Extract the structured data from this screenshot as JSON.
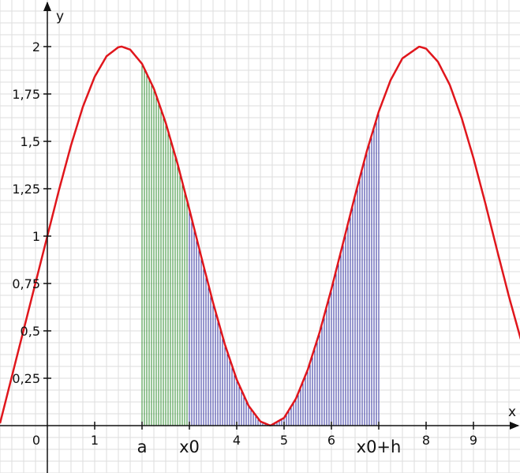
{
  "chart_data": {
    "type": "area",
    "function_values": {
      "x": [
        0,
        0.25,
        0.5,
        0.75,
        1,
        1.25,
        1.5,
        1.571,
        1.75,
        2,
        2.25,
        2.5,
        2.75,
        3,
        3.25,
        3.5,
        3.75,
        4,
        4.25,
        4.5,
        4.712,
        5,
        5.25,
        5.5,
        5.75,
        6,
        6.25,
        6.5,
        6.75,
        7,
        7.25,
        7.5,
        7.854,
        8,
        8.25,
        8.5,
        8.75,
        9,
        9.25,
        9.5,
        9.75,
        10
      ],
      "y": [
        1,
        1.247,
        1.479,
        1.682,
        1.841,
        1.949,
        1.997,
        2,
        1.984,
        1.909,
        1.778,
        1.598,
        1.382,
        1.141,
        0.892,
        0.649,
        0.428,
        0.243,
        0.105,
        0.022,
        0,
        0.041,
        0.142,
        0.295,
        0.492,
        0.721,
        0.967,
        1.215,
        1.45,
        1.657,
        1.823,
        1.938,
        2,
        1.989,
        1.92,
        1.798,
        1.624,
        1.412,
        1.174,
        0.925,
        0.681,
        0.456
      ]
    },
    "shaded_regions": [
      {
        "color": "#2e8b2e",
        "from_x": 2,
        "to_x": 3
      },
      {
        "color": "#2e2e9e",
        "from_x": 3,
        "to_x": 7
      }
    ],
    "curve_color": "#e0161c",
    "xlabel": "x",
    "ylabel": "y",
    "xlim": [
      -1,
      10
    ],
    "ylim": [
      -0.25,
      2.25
    ],
    "x_ticks": [
      {
        "value": 0,
        "label": "0"
      },
      {
        "value": 1,
        "label": "1"
      },
      {
        "value": 4,
        "label": "4"
      },
      {
        "value": 5,
        "label": "5"
      },
      {
        "value": 6,
        "label": "6"
      },
      {
        "value": 8,
        "label": "8"
      },
      {
        "value": 9,
        "label": "9"
      }
    ],
    "x_markers": [
      {
        "value": 2,
        "label": "a"
      },
      {
        "value": 3,
        "label": "x0"
      },
      {
        "value": 7,
        "label": "x0+h"
      }
    ],
    "y_ticks": [
      {
        "value": 0.25,
        "label": "0,25"
      },
      {
        "value": 0.5,
        "label": "0,5"
      },
      {
        "value": 0.75,
        "label": "0,75"
      },
      {
        "value": 1,
        "label": "1"
      },
      {
        "value": 1.25,
        "label": "1,25"
      },
      {
        "value": 1.5,
        "label": "1,5"
      },
      {
        "value": 1.75,
        "label": "1,75"
      },
      {
        "value": 2,
        "label": "2"
      }
    ],
    "grid": true,
    "legend": "none"
  }
}
